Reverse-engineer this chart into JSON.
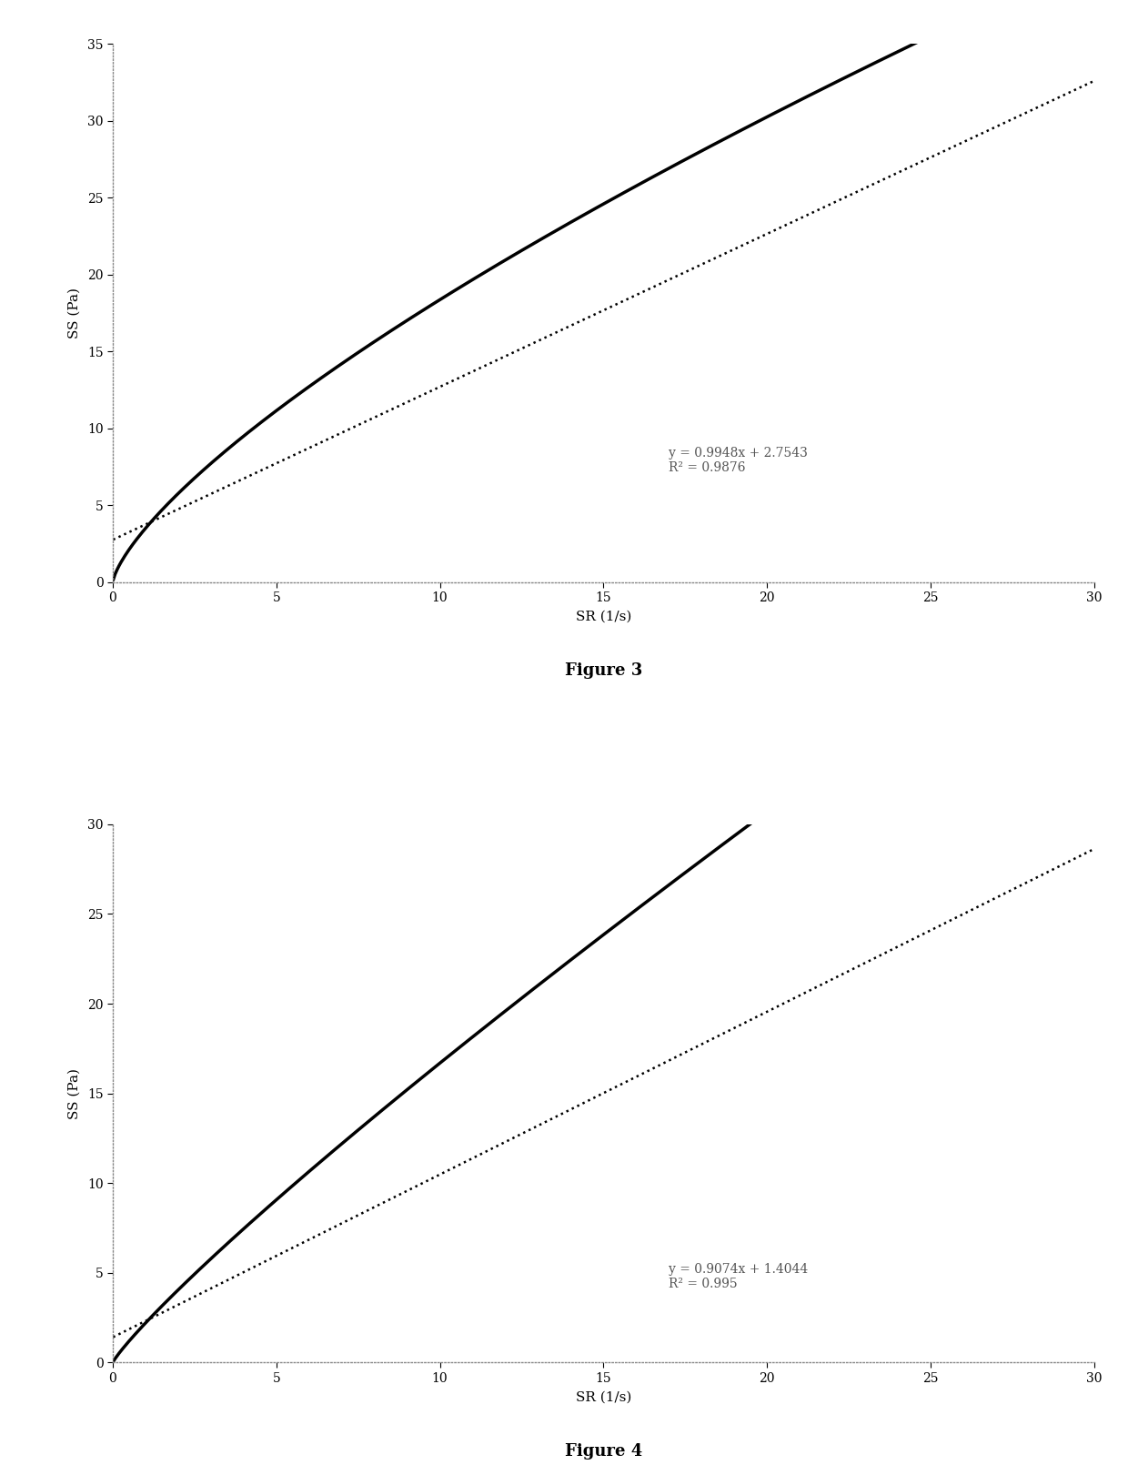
{
  "fig3": {
    "title": "Figure 3",
    "xlabel": "SR (1/s)",
    "ylabel": "SS (Pa)",
    "xlim": [
      0,
      30
    ],
    "ylim": [
      0,
      35
    ],
    "xticks": [
      0,
      5,
      10,
      15,
      20,
      25,
      30
    ],
    "yticks": [
      0,
      5,
      10,
      15,
      20,
      25,
      30,
      35
    ],
    "curve_power": 0.72,
    "curve_scale": 3.5,
    "linear_slope": 0.9948,
    "linear_intercept": 2.7543,
    "annotation": "y = 0.9948x + 2.7543\nR² = 0.9876",
    "ann_x": 17,
    "ann_y": 7
  },
  "fig4": {
    "title": "Figure 4",
    "xlabel": "SR (1/s)",
    "ylabel": "SS (Pa)",
    "xlim": [
      0,
      30
    ],
    "ylim": [
      0,
      30
    ],
    "xticks": [
      0,
      5,
      10,
      15,
      20,
      25,
      30
    ],
    "yticks": [
      0,
      5,
      10,
      15,
      20,
      25,
      30
    ],
    "curve_power": 0.88,
    "curve_scale": 2.2,
    "linear_slope": 0.9074,
    "linear_intercept": 1.4044,
    "annotation": "y = 0.9074x + 1.4044\nR² = 0.995",
    "ann_x": 17,
    "ann_y": 4
  },
  "background_color": "#ffffff",
  "line_color": "#000000",
  "dotted_color": "#000000",
  "font_family": "serif",
  "title_fontsize": 13,
  "label_fontsize": 11,
  "tick_fontsize": 10,
  "ann_fontsize": 10
}
